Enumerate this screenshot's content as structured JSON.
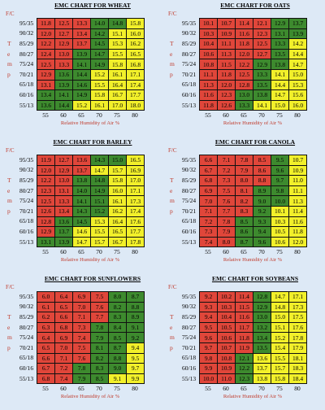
{
  "axis": {
    "fc_label": "F/C",
    "xlabel": "Relative Humidity of Air %",
    "side_letters": [
      "T",
      "e",
      "m",
      "p"
    ]
  },
  "legend_colors": {
    "red": "#e0463a",
    "green": "#3d8a2e",
    "yellow": "#f2f02a"
  },
  "chart_data": [
    {
      "type": "heatmap",
      "title": "EMC CHART FOR WHEAT",
      "x": [
        55,
        60,
        65,
        70,
        75,
        80
      ],
      "y": [
        "95/35",
        "90/32",
        "85/29",
        "80/27",
        "75/24",
        "70/21",
        "65/18",
        "60/16",
        "55/13"
      ],
      "values": [
        [
          11.8,
          12.5,
          13.3,
          14.0,
          14.8,
          15.8
        ],
        [
          12.0,
          12.7,
          13.4,
          14.2,
          15.1,
          16.0
        ],
        [
          12.2,
          12.9,
          13.7,
          14.5,
          15.3,
          16.2
        ],
        [
          12.4,
          13.0,
          13.9,
          14.7,
          15.5,
          16.5
        ],
        [
          12.5,
          13.3,
          14.1,
          14.9,
          15.8,
          16.8
        ],
        [
          12.9,
          13.6,
          14.4,
          15.2,
          16.1,
          17.1
        ],
        [
          13.1,
          13.9,
          14.6,
          15.5,
          16.4,
          17.4
        ],
        [
          13.4,
          14.1,
          14.9,
          15.8,
          16.7,
          17.7
        ],
        [
          13.6,
          14.4,
          15.2,
          16.1,
          17.0,
          18.0
        ]
      ],
      "colors": [
        [
          "r",
          "r",
          "r",
          "g",
          "g",
          "y"
        ],
        [
          "r",
          "r",
          "r",
          "g",
          "y",
          "y"
        ],
        [
          "r",
          "r",
          "r",
          "g",
          "y",
          "y"
        ],
        [
          "r",
          "r",
          "g",
          "g",
          "y",
          "y"
        ],
        [
          "r",
          "r",
          "g",
          "g",
          "y",
          "y"
        ],
        [
          "r",
          "g",
          "g",
          "y",
          "y",
          "y"
        ],
        [
          "r",
          "g",
          "g",
          "y",
          "y",
          "y"
        ],
        [
          "g",
          "g",
          "g",
          "y",
          "y",
          "y"
        ],
        [
          "g",
          "g",
          "y",
          "y",
          "y",
          "y"
        ]
      ]
    },
    {
      "type": "heatmap",
      "title": "EMC CHART FOR OATS",
      "x": [
        55,
        60,
        65,
        70,
        75,
        80
      ],
      "y": [
        "95/35",
        "90/32",
        "85/29",
        "80/27",
        "75/24",
        "70/21",
        "65/18",
        "60/16",
        "55/13"
      ],
      "values": [
        [
          10.1,
          10.7,
          11.4,
          12.1,
          12.9,
          13.7
        ],
        [
          10.3,
          10.9,
          11.6,
          12.3,
          13.1,
          13.9
        ],
        [
          10.4,
          11.1,
          11.8,
          12.5,
          13.3,
          14.2
        ],
        [
          10.6,
          11.3,
          12.0,
          12.7,
          13.5,
          14.4
        ],
        [
          10.8,
          11.5,
          12.2,
          12.9,
          13.8,
          14.7
        ],
        [
          11.1,
          11.8,
          12.5,
          13.3,
          14.1,
          15.0
        ],
        [
          11.3,
          12.0,
          12.8,
          13.5,
          14.4,
          15.3
        ],
        [
          11.6,
          12.3,
          13.0,
          13.8,
          14.7,
          15.6
        ],
        [
          11.8,
          12.6,
          13.3,
          14.1,
          15.0,
          16.0
        ]
      ],
      "colors": [
        [
          "r",
          "r",
          "r",
          "r",
          "g",
          "g"
        ],
        [
          "r",
          "r",
          "r",
          "r",
          "g",
          "g"
        ],
        [
          "r",
          "r",
          "r",
          "r",
          "g",
          "y"
        ],
        [
          "r",
          "r",
          "r",
          "r",
          "g",
          "y"
        ],
        [
          "r",
          "r",
          "r",
          "g",
          "g",
          "y"
        ],
        [
          "r",
          "r",
          "r",
          "g",
          "y",
          "y"
        ],
        [
          "r",
          "r",
          "r",
          "g",
          "y",
          "y"
        ],
        [
          "r",
          "r",
          "g",
          "g",
          "y",
          "y"
        ],
        [
          "r",
          "r",
          "g",
          "y",
          "y",
          "y"
        ]
      ]
    },
    {
      "type": "heatmap",
      "title": "EMC CHART FOR BARLEY",
      "x": [
        55,
        60,
        65,
        70,
        75,
        80
      ],
      "y": [
        "95/35",
        "90/32",
        "85/29",
        "80/27",
        "75/24",
        "70/21",
        "65/18",
        "60/16",
        "55/13"
      ],
      "values": [
        [
          11.9,
          12.7,
          13.6,
          14.3,
          15.0,
          16.5
        ],
        [
          12.0,
          12.9,
          13.7,
          14.7,
          15.7,
          16.9
        ],
        [
          12.2,
          13.0,
          13.8,
          14.8,
          15.8,
          17.0
        ],
        [
          12.3,
          13.1,
          14.0,
          14.9,
          16.0,
          17.1
        ],
        [
          12.5,
          13.3,
          14.1,
          15.1,
          16.1,
          17.3
        ],
        [
          12.6,
          13.4,
          14.3,
          15.2,
          16.2,
          17.4
        ],
        [
          12.8,
          13.6,
          14.5,
          15.3,
          16.4,
          17.6
        ],
        [
          12.9,
          13.7,
          14.6,
          15.5,
          16.5,
          17.7
        ],
        [
          13.1,
          13.9,
          14.7,
          15.7,
          16.7,
          17.8
        ]
      ],
      "colors": [
        [
          "r",
          "r",
          "r",
          "g",
          "g",
          "y"
        ],
        [
          "r",
          "r",
          "r",
          "y",
          "y",
          "y"
        ],
        [
          "r",
          "r",
          "g",
          "g",
          "y",
          "y"
        ],
        [
          "r",
          "r",
          "g",
          "g",
          "y",
          "y"
        ],
        [
          "r",
          "r",
          "g",
          "g",
          "y",
          "y"
        ],
        [
          "r",
          "r",
          "g",
          "g",
          "y",
          "y"
        ],
        [
          "r",
          "g",
          "g",
          "y",
          "y",
          "y"
        ],
        [
          "r",
          "g",
          "y",
          "y",
          "y",
          "y"
        ],
        [
          "g",
          "g",
          "y",
          "y",
          "y",
          "y"
        ]
      ]
    },
    {
      "type": "heatmap",
      "title": "EMC CHART FOR CANOLA",
      "x": [
        55,
        60,
        65,
        70,
        75,
        80
      ],
      "y": [
        "95/35",
        "90/32",
        "85/29",
        "80/27",
        "75/24",
        "70/21",
        "65/18",
        "60/16",
        "55/13"
      ],
      "values": [
        [
          6.6,
          7.1,
          7.8,
          8.5,
          9.5,
          10.7
        ],
        [
          6.7,
          7.2,
          7.9,
          8.6,
          9.6,
          10.9
        ],
        [
          6.8,
          7.3,
          8.0,
          8.8,
          9.7,
          11.0
        ],
        [
          6.9,
          7.5,
          8.1,
          8.9,
          9.8,
          11.1
        ],
        [
          7.0,
          7.6,
          8.2,
          9.0,
          10.0,
          11.3
        ],
        [
          7.1,
          7.7,
          8.3,
          9.2,
          10.1,
          11.4
        ],
        [
          7.2,
          7.8,
          8.5,
          9.3,
          10.3,
          11.6
        ],
        [
          7.3,
          7.9,
          8.6,
          9.4,
          10.5,
          11.8
        ],
        [
          7.4,
          8.0,
          8.7,
          9.6,
          10.6,
          12.0
        ]
      ],
      "colors": [
        [
          "r",
          "r",
          "r",
          "r",
          "g",
          "y"
        ],
        [
          "r",
          "r",
          "r",
          "r",
          "g",
          "y"
        ],
        [
          "r",
          "r",
          "r",
          "r",
          "g",
          "y"
        ],
        [
          "r",
          "r",
          "r",
          "g",
          "g",
          "y"
        ],
        [
          "r",
          "r",
          "r",
          "g",
          "g",
          "y"
        ],
        [
          "r",
          "r",
          "r",
          "g",
          "y",
          "y"
        ],
        [
          "r",
          "r",
          "g",
          "g",
          "y",
          "y"
        ],
        [
          "r",
          "r",
          "g",
          "g",
          "y",
          "y"
        ],
        [
          "r",
          "r",
          "g",
          "g",
          "y",
          "y"
        ]
      ]
    },
    {
      "type": "heatmap",
      "title": "EMC CHART FOR SUNFLOWERS",
      "x": [
        55,
        60,
        65,
        70,
        75,
        80
      ],
      "y": [
        "95/35",
        "90/32",
        "85/29",
        "80/27",
        "75/24",
        "70/21",
        "65/18",
        "60/16",
        "55/13"
      ],
      "values": [
        [
          6.0,
          6.4,
          6.9,
          7.5,
          8.0,
          8.7
        ],
        [
          6.1,
          6.5,
          7.0,
          7.6,
          8.2,
          8.8
        ],
        [
          6.2,
          6.6,
          7.1,
          7.7,
          8.3,
          8.9
        ],
        [
          6.3,
          6.8,
          7.3,
          7.8,
          8.4,
          9.1
        ],
        [
          6.4,
          6.9,
          7.4,
          7.9,
          8.5,
          9.2
        ],
        [
          6.5,
          7.0,
          7.5,
          8.1,
          8.7,
          9.4
        ],
        [
          6.6,
          7.1,
          7.6,
          8.2,
          8.8,
          9.5
        ],
        [
          6.7,
          7.2,
          7.8,
          8.3,
          9.0,
          9.7
        ],
        [
          6.8,
          7.4,
          7.9,
          8.5,
          9.1,
          9.9
        ]
      ],
      "colors": [
        [
          "r",
          "r",
          "r",
          "r",
          "g",
          "g"
        ],
        [
          "r",
          "r",
          "r",
          "r",
          "g",
          "g"
        ],
        [
          "r",
          "r",
          "r",
          "r",
          "g",
          "g"
        ],
        [
          "r",
          "r",
          "r",
          "g",
          "g",
          "g"
        ],
        [
          "r",
          "r",
          "r",
          "g",
          "g",
          "g"
        ],
        [
          "r",
          "r",
          "r",
          "g",
          "g",
          "y"
        ],
        [
          "r",
          "r",
          "r",
          "g",
          "g",
          "y"
        ],
        [
          "r",
          "r",
          "g",
          "g",
          "g",
          "y"
        ],
        [
          "r",
          "r",
          "g",
          "g",
          "y",
          "y"
        ]
      ]
    },
    {
      "type": "heatmap",
      "title": "EMC CHART FOR SOYBEANS",
      "x": [
        55,
        60,
        65,
        70,
        75,
        80
      ],
      "y": [
        "95/35",
        "90/32",
        "85/29",
        "80/27",
        "75/24",
        "70/21",
        "65/18",
        "60/16",
        "55/13"
      ],
      "values": [
        [
          9.2,
          10.2,
          11.4,
          12.8,
          14.7,
          17.1
        ],
        [
          9.3,
          10.3,
          11.5,
          12.9,
          14.8,
          17.3
        ],
        [
          9.4,
          10.4,
          11.6,
          13.0,
          15.0,
          17.5
        ],
        [
          9.5,
          10.5,
          11.7,
          13.2,
          15.1,
          17.6
        ],
        [
          9.6,
          10.6,
          11.8,
          13.4,
          15.2,
          17.8
        ],
        [
          9.7,
          10.7,
          11.9,
          13.5,
          15.4,
          17.9
        ],
        [
          9.8,
          10.8,
          12.1,
          13.6,
          15.5,
          18.1
        ],
        [
          9.9,
          10.9,
          12.2,
          13.7,
          15.7,
          18.3
        ],
        [
          10.0,
          11.0,
          12.3,
          13.8,
          15.8,
          18.4
        ]
      ],
      "colors": [
        [
          "r",
          "r",
          "r",
          "g",
          "y",
          "y"
        ],
        [
          "r",
          "r",
          "r",
          "g",
          "y",
          "y"
        ],
        [
          "r",
          "r",
          "r",
          "g",
          "y",
          "y"
        ],
        [
          "r",
          "r",
          "r",
          "g",
          "y",
          "y"
        ],
        [
          "r",
          "r",
          "r",
          "g",
          "y",
          "y"
        ],
        [
          "r",
          "r",
          "r",
          "g",
          "y",
          "y"
        ],
        [
          "r",
          "r",
          "g",
          "y",
          "y",
          "y"
        ],
        [
          "r",
          "r",
          "g",
          "y",
          "y",
          "y"
        ],
        [
          "r",
          "r",
          "g",
          "y",
          "y",
          "y"
        ]
      ]
    }
  ]
}
